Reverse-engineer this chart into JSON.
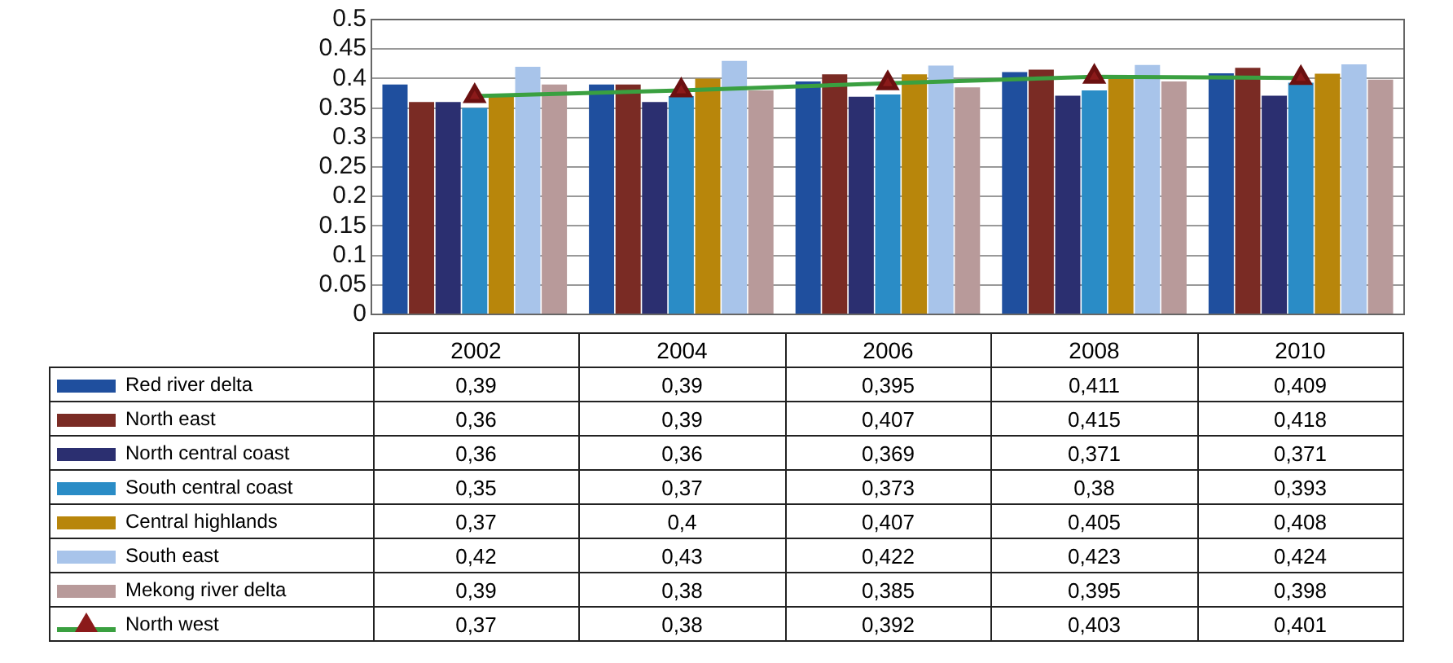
{
  "chart_data": {
    "type": "bar",
    "categories": [
      "2002",
      "2004",
      "2006",
      "2008",
      "2010"
    ],
    "series": [
      {
        "name": "Red river delta",
        "color": "#1f4f9e",
        "values": [
          0.39,
          0.39,
          0.395,
          0.411,
          0.409
        ],
        "value_labels": [
          "0,39",
          "0,39",
          "0,395",
          "0,411",
          "0,409"
        ]
      },
      {
        "name": "North east",
        "color": "#7a2b24",
        "values": [
          0.36,
          0.39,
          0.407,
          0.415,
          0.418
        ],
        "value_labels": [
          "0,36",
          "0,39",
          "0,407",
          "0,415",
          "0,418"
        ]
      },
      {
        "name": "North central coast",
        "color": "#2b2f70",
        "values": [
          0.36,
          0.36,
          0.369,
          0.371,
          0.371
        ],
        "value_labels": [
          "0,36",
          "0,36",
          "0,369",
          "0,371",
          "0,371"
        ]
      },
      {
        "name": "South central coast",
        "color": "#2a8cc6",
        "values": [
          0.35,
          0.37,
          0.373,
          0.38,
          0.393
        ],
        "value_labels": [
          "0,35",
          "0,37",
          "0,373",
          "0,38",
          "0,393"
        ]
      },
      {
        "name": "Central highlands",
        "color": "#b8860b",
        "values": [
          0.37,
          0.4,
          0.407,
          0.405,
          0.408
        ],
        "value_labels": [
          "0,37",
          "0,4",
          "0,407",
          "0,405",
          "0,408"
        ]
      },
      {
        "name": "South east",
        "color": "#a8c4ea",
        "values": [
          0.42,
          0.43,
          0.422,
          0.423,
          0.424
        ],
        "value_labels": [
          "0,42",
          "0,43",
          "0,422",
          "0,423",
          "0,424"
        ]
      },
      {
        "name": "Mekong river delta",
        "color": "#b89a9a",
        "values": [
          0.39,
          0.38,
          0.385,
          0.395,
          0.398
        ],
        "value_labels": [
          "0,39",
          "0,38",
          "0,385",
          "0,395",
          "0,398"
        ]
      },
      {
        "name": "North west",
        "type": "line",
        "color": "#3aa040",
        "marker": "triangle",
        "values": [
          0.37,
          0.38,
          0.392,
          0.403,
          0.401
        ],
        "value_labels": [
          "0,37",
          "0,38",
          "0,392",
          "0,403",
          "0,401"
        ]
      }
    ],
    "ylim": [
      0,
      0.5
    ],
    "yticks": [
      0,
      0.05,
      0.1,
      0.15,
      0.2,
      0.25,
      0.3,
      0.35,
      0.4,
      0.45,
      0.5
    ],
    "grid": "y",
    "legend": "bottom"
  }
}
